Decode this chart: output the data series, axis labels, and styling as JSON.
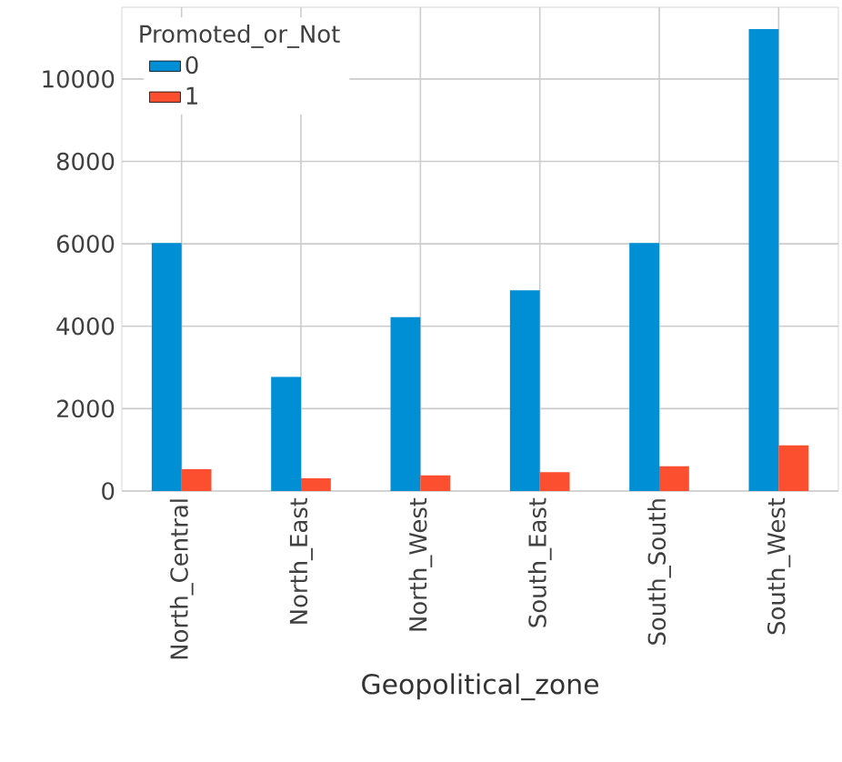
{
  "chart_data": {
    "type": "bar",
    "xlabel": "Geopolitical_zone",
    "legend_title": "Promoted_or_Not",
    "categories": [
      "North_Central",
      "North_East",
      "North_West",
      "South_East",
      "South_South",
      "South_West"
    ],
    "series": [
      {
        "name": "0",
        "color": "#008fd5",
        "values": [
          6020,
          2770,
          4220,
          4870,
          6020,
          11210
        ]
      },
      {
        "name": "1",
        "color": "#fc4f30",
        "values": [
          530,
          310,
          380,
          460,
          600,
          1110
        ]
      }
    ],
    "ylim": [
      0,
      11740
    ],
    "yticks": [
      0,
      2000,
      4000,
      6000,
      8000,
      10000
    ],
    "grid": true,
    "legend": "top left"
  }
}
